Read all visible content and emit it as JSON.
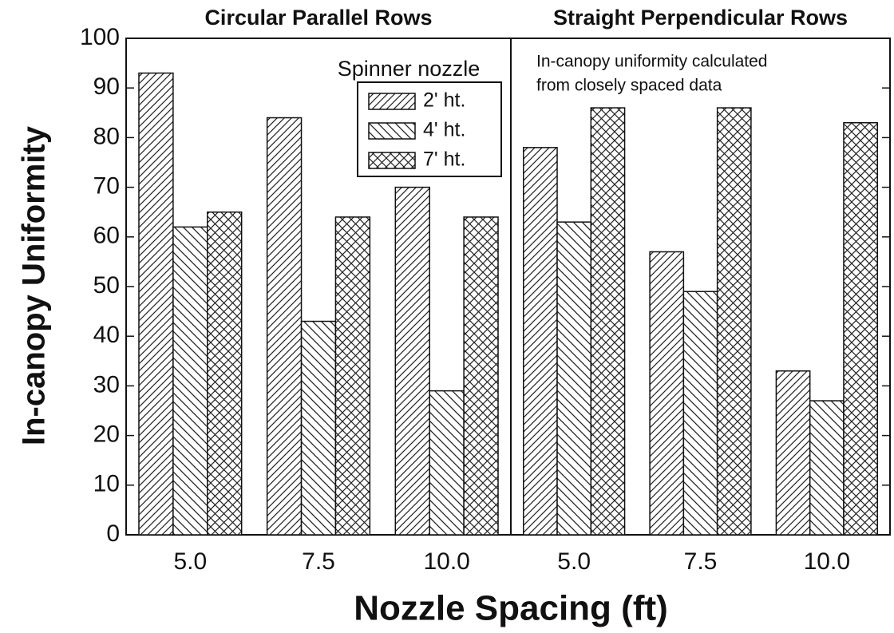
{
  "chart_data": [
    {
      "type": "bar",
      "title": "Circular Parallel Rows",
      "ylabel": "In-canopy Uniformity",
      "xlabel": "Nozzle Spacing (ft)",
      "legend_title": "Spinner nozzle",
      "legend": "top-right",
      "categories": [
        "5.0",
        "7.5",
        "10.0"
      ],
      "series": [
        {
          "name": "2' ht.",
          "pattern": "forward-hatch",
          "values": [
            93,
            84,
            70
          ]
        },
        {
          "name": "4' ht.",
          "pattern": "back-hatch",
          "values": [
            62,
            43,
            29
          ]
        },
        {
          "name": "7' ht.",
          "pattern": "cross-hatch",
          "values": [
            65,
            64,
            64
          ]
        }
      ],
      "ylim": [
        0,
        100
      ],
      "yticks": [
        0,
        10,
        20,
        30,
        40,
        50,
        60,
        70,
        80,
        90,
        100
      ],
      "ytick_side": "left",
      "ytick_labels": true
    },
    {
      "type": "bar",
      "title": "Straight Perpendicular Rows",
      "annotation": [
        "In-canopy uniformity calculated",
        "from closely spaced data"
      ],
      "categories": [
        "5.0",
        "7.5",
        "10.0"
      ],
      "series": [
        {
          "name": "2' ht.",
          "pattern": "forward-hatch",
          "values": [
            78,
            57,
            33
          ]
        },
        {
          "name": "4' ht.",
          "pattern": "back-hatch",
          "values": [
            63,
            49,
            27
          ]
        },
        {
          "name": "7' ht.",
          "pattern": "cross-hatch",
          "values": [
            86,
            86,
            83
          ]
        }
      ],
      "ylim": [
        0,
        100
      ],
      "yticks": [
        0,
        10,
        20,
        30,
        40,
        50,
        60,
        70,
        80,
        90,
        100
      ],
      "ytick_side": "right",
      "ytick_labels": false
    }
  ]
}
